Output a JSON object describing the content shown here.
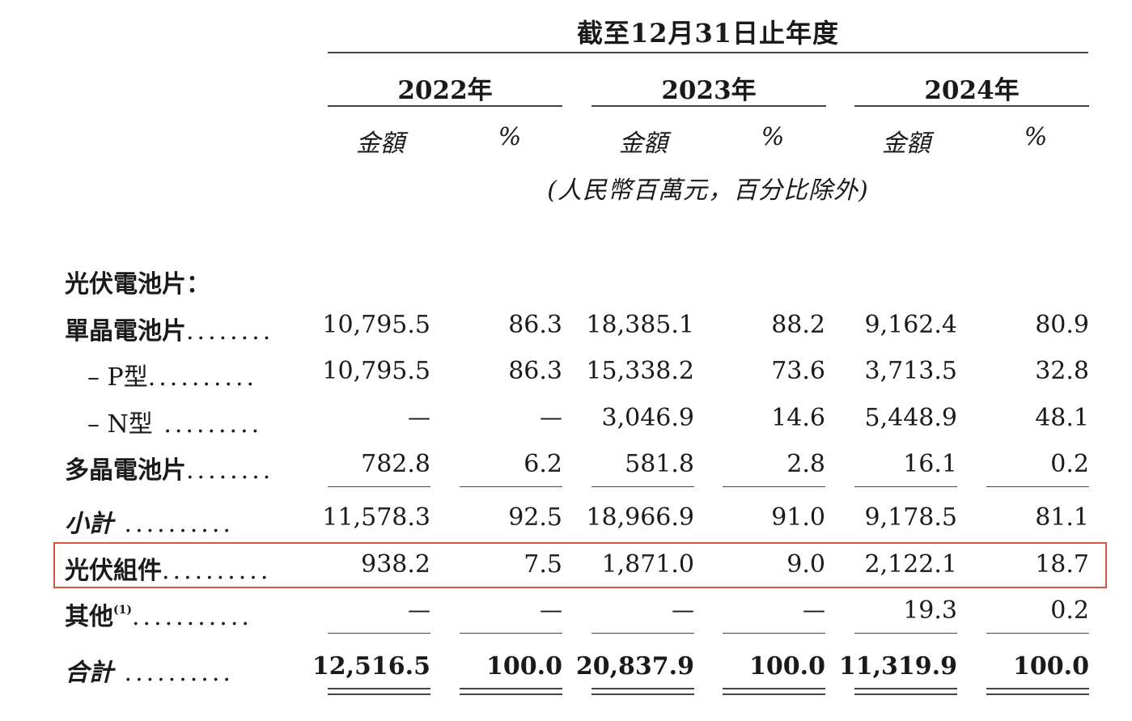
{
  "header": {
    "title": "截至12月31日止年度",
    "years": [
      "2022年",
      "2023年",
      "2024年"
    ],
    "col_amount": "金額",
    "col_percent": "%",
    "unit_note": "(人民幣百萬元，百分比除外)"
  },
  "rows": [
    {
      "label": "光伏電池片：",
      "dots": "",
      "values": []
    },
    {
      "label": "單晶電池片",
      "dots": "........",
      "values": [
        "10,795.5",
        "86.3",
        "18,385.1",
        "88.2",
        "9,162.4",
        "80.9"
      ]
    },
    {
      "label": "– P型",
      "dots": "..........",
      "values": [
        "10,795.5",
        "86.3",
        "15,338.2",
        "73.6",
        "3,713.5",
        "32.8"
      ]
    },
    {
      "label": "– N型",
      "dots": " .........",
      "values": [
        "—",
        "—",
        "3,046.9",
        "14.6",
        "5,448.9",
        "48.1"
      ]
    },
    {
      "label": "多晶電池片",
      "dots": "........",
      "values": [
        "782.8",
        "6.2",
        "581.8",
        "2.8",
        "16.1",
        "0.2"
      ]
    },
    {
      "label": "小計",
      "dots": " ..........",
      "values": [
        "11,578.3",
        "92.5",
        "18,966.9",
        "91.0",
        "9,178.5",
        "81.1"
      ]
    },
    {
      "label": "光伏組件",
      "dots": "..........",
      "values": [
        "938.2",
        "7.5",
        "1,871.0",
        "9.0",
        "2,122.1",
        "18.7"
      ]
    },
    {
      "label": "其他",
      "sup": "(1)",
      "dots": "...........",
      "values": [
        "—",
        "—",
        "—",
        "—",
        "19.3",
        "0.2"
      ]
    },
    {
      "label": "合計",
      "dots": " ..........",
      "values": [
        "12,516.5",
        "100.0",
        "20,837.9",
        "100.0",
        "11,319.9",
        "100.0"
      ]
    }
  ],
  "highlight_color": "#d9533f"
}
